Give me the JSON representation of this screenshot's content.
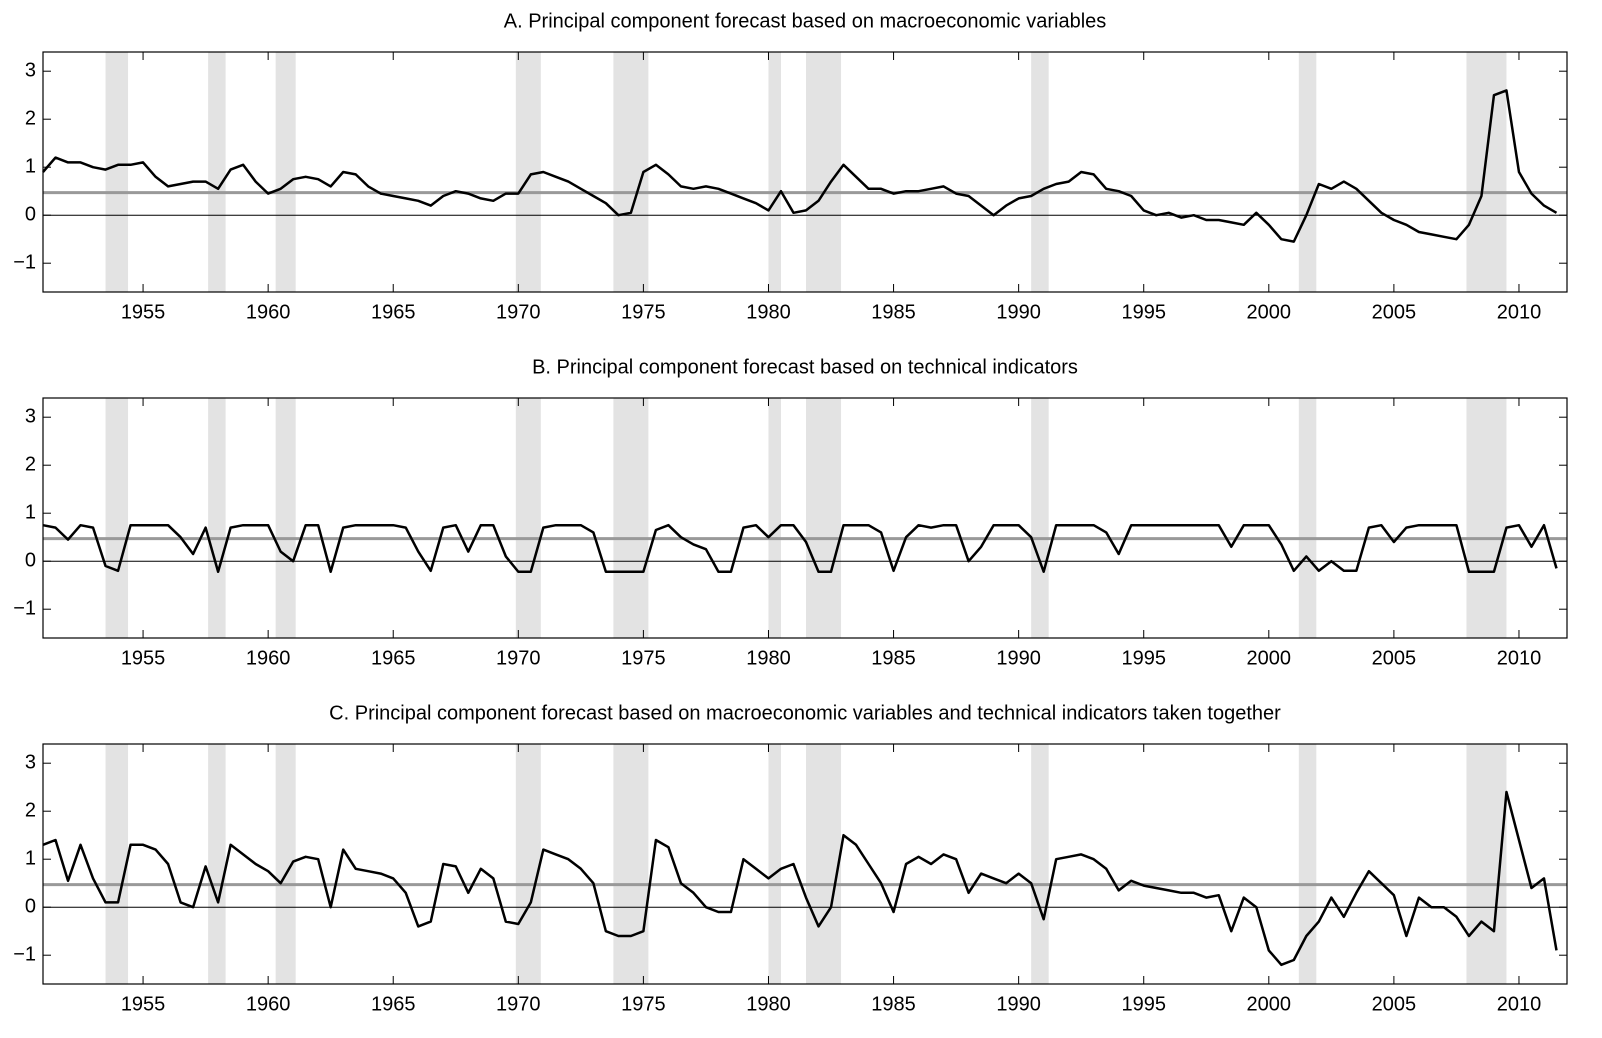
{
  "chart_data": [
    {
      "type": "line",
      "title": "A. Principal component forecast based on macroeconomic variables",
      "x": [
        1951,
        1951.5,
        1952,
        1952.5,
        1953,
        1953.5,
        1954,
        1954.5,
        1955,
        1955.5,
        1956,
        1956.5,
        1957,
        1957.5,
        1958,
        1958.5,
        1959,
        1959.5,
        1960,
        1960.5,
        1961,
        1961.5,
        1962,
        1962.5,
        1963,
        1963.5,
        1964,
        1964.5,
        1965,
        1965.5,
        1966,
        1966.5,
        1967,
        1967.5,
        1968,
        1968.5,
        1969,
        1969.5,
        1970,
        1970.5,
        1971,
        1971.5,
        1972,
        1972.5,
        1973,
        1973.5,
        1974,
        1974.5,
        1975,
        1975.5,
        1976,
        1976.5,
        1977,
        1977.5,
        1978,
        1978.5,
        1979,
        1979.5,
        1980,
        1980.5,
        1981,
        1981.5,
        1982,
        1982.5,
        1983,
        1983.5,
        1984,
        1984.5,
        1985,
        1985.5,
        1986,
        1986.5,
        1987,
        1987.5,
        1988,
        1988.5,
        1989,
        1989.5,
        1990,
        1990.5,
        1991,
        1991.5,
        1992,
        1992.5,
        1993,
        1993.5,
        1994,
        1994.5,
        1995,
        1995.5,
        1996,
        1996.5,
        1997,
        1997.5,
        1998,
        1998.5,
        1999,
        1999.5,
        2000,
        2000.5,
        2001,
        2001.5,
        2002,
        2002.5,
        2003,
        2003.5,
        2004,
        2004.5,
        2005,
        2005.5,
        2006,
        2006.5,
        2007,
        2007.5,
        2008,
        2008.5,
        2009,
        2009.5,
        2010,
        2010.5,
        2011,
        2011.5
      ],
      "series": [
        {
          "color": "#000000",
          "values": [
            0.9,
            1.2,
            1.1,
            1.1,
            1.0,
            0.95,
            1.05,
            1.05,
            1.1,
            0.8,
            0.6,
            0.65,
            0.7,
            0.7,
            0.55,
            0.95,
            1.05,
            0.7,
            0.45,
            0.55,
            0.75,
            0.8,
            0.75,
            0.6,
            0.9,
            0.85,
            0.6,
            0.45,
            0.4,
            0.35,
            0.3,
            0.2,
            0.4,
            0.5,
            0.45,
            0.35,
            0.3,
            0.45,
            0.45,
            0.85,
            0.9,
            0.8,
            0.7,
            0.55,
            0.4,
            0.25,
            0.0,
            0.05,
            0.9,
            1.05,
            0.85,
            0.6,
            0.55,
            0.6,
            0.55,
            0.45,
            0.35,
            0.25,
            0.1,
            0.5,
            0.05,
            0.1,
            0.3,
            0.7,
            1.05,
            0.8,
            0.55,
            0.55,
            0.45,
            0.5,
            0.5,
            0.55,
            0.6,
            0.45,
            0.4,
            0.2,
            0.0,
            0.2,
            0.35,
            0.4,
            0.55,
            0.65,
            0.7,
            0.9,
            0.85,
            0.55,
            0.5,
            0.4,
            0.1,
            0.0,
            0.05,
            -0.05,
            0.0,
            -0.1,
            -0.1,
            -0.15,
            -0.2,
            0.05,
            -0.2,
            -0.5,
            -0.55,
            0.0,
            0.65,
            0.55,
            0.7,
            0.55,
            0.3,
            0.05,
            -0.1,
            -0.2,
            -0.35,
            -0.4,
            -0.45,
            -0.5,
            -0.2,
            0.4,
            2.5,
            2.6,
            0.9,
            0.45,
            0.2,
            0.05
          ]
        }
      ],
      "reference_line": 0.47,
      "reference_color": "#999999",
      "shading": [
        [
          1953.5,
          1954.4
        ],
        [
          1957.6,
          1958.3
        ],
        [
          1960.3,
          1961.1
        ],
        [
          1969.9,
          1970.9
        ],
        [
          1973.8,
          1975.2
        ],
        [
          1980.0,
          1980.5
        ],
        [
          1981.5,
          1982.9
        ],
        [
          1990.5,
          1991.2
        ],
        [
          2001.2,
          2001.9
        ],
        [
          2007.9,
          2009.5
        ]
      ],
      "shading_color": "#e3e3e3",
      "xlim": [
        1951,
        2011.92
      ],
      "xticks": [
        1955,
        1960,
        1965,
        1970,
        1975,
        1980,
        1985,
        1990,
        1995,
        2000,
        2005,
        2010
      ],
      "ylim": [
        -1.6,
        3.4
      ],
      "yticks": [
        {
          "value": -1,
          "label": "−1"
        },
        0,
        1,
        2,
        3
      ]
    },
    {
      "type": "line",
      "title": "B. Principal component forecast based on technical indicators",
      "x": [
        1951,
        1951.5,
        1952,
        1952.5,
        1953,
        1953.5,
        1954,
        1954.5,
        1955,
        1955.5,
        1956,
        1956.5,
        1957,
        1957.5,
        1958,
        1958.5,
        1959,
        1959.5,
        1960,
        1960.5,
        1961,
        1961.5,
        1962,
        1962.5,
        1963,
        1963.5,
        1964,
        1964.5,
        1965,
        1965.5,
        1966,
        1966.5,
        1967,
        1967.5,
        1968,
        1968.5,
        1969,
        1969.5,
        1970,
        1970.5,
        1971,
        1971.5,
        1972,
        1972.5,
        1973,
        1973.5,
        1974,
        1974.5,
        1975,
        1975.5,
        1976,
        1976.5,
        1977,
        1977.5,
        1978,
        1978.5,
        1979,
        1979.5,
        1980,
        1980.5,
        1981,
        1981.5,
        1982,
        1982.5,
        1983,
        1983.5,
        1984,
        1984.5,
        1985,
        1985.5,
        1986,
        1986.5,
        1987,
        1987.5,
        1988,
        1988.5,
        1989,
        1989.5,
        1990,
        1990.5,
        1991,
        1991.5,
        1992,
        1992.5,
        1993,
        1993.5,
        1994,
        1994.5,
        1995,
        1995.5,
        1996,
        1996.5,
        1997,
        1997.5,
        1998,
        1998.5,
        1999,
        1999.5,
        2000,
        2000.5,
        2001,
        2001.5,
        2002,
        2002.5,
        2003,
        2003.5,
        2004,
        2004.5,
        2005,
        2005.5,
        2006,
        2006.5,
        2007,
        2007.5,
        2008,
        2008.5,
        2009,
        2009.5,
        2010,
        2010.5,
        2011,
        2011.5
      ],
      "series": [
        {
          "color": "#000000",
          "values": [
            0.75,
            0.7,
            0.45,
            0.75,
            0.7,
            -0.1,
            -0.2,
            0.75,
            0.75,
            0.75,
            0.75,
            0.5,
            0.15,
            0.7,
            -0.22,
            0.7,
            0.75,
            0.75,
            0.75,
            0.2,
            0.0,
            0.75,
            0.75,
            -0.22,
            0.7,
            0.75,
            0.75,
            0.75,
            0.75,
            0.7,
            0.2,
            -0.2,
            0.7,
            0.75,
            0.2,
            0.75,
            0.75,
            0.1,
            -0.22,
            -0.22,
            0.7,
            0.75,
            0.75,
            0.75,
            0.6,
            -0.22,
            -0.22,
            -0.22,
            -0.22,
            0.65,
            0.75,
            0.5,
            0.35,
            0.25,
            -0.22,
            -0.22,
            0.7,
            0.75,
            0.5,
            0.75,
            0.75,
            0.4,
            -0.22,
            -0.22,
            0.75,
            0.75,
            0.75,
            0.6,
            -0.2,
            0.5,
            0.75,
            0.7,
            0.75,
            0.75,
            0.0,
            0.3,
            0.75,
            0.75,
            0.75,
            0.5,
            -0.22,
            0.75,
            0.75,
            0.75,
            0.75,
            0.6,
            0.15,
            0.75,
            0.75,
            0.75,
            0.75,
            0.75,
            0.75,
            0.75,
            0.75,
            0.3,
            0.75,
            0.75,
            0.75,
            0.35,
            -0.2,
            0.1,
            -0.2,
            0.0,
            -0.2,
            -0.2,
            0.7,
            0.75,
            0.4,
            0.7,
            0.75,
            0.75,
            0.75,
            0.75,
            -0.22,
            -0.22,
            -0.22,
            0.7,
            0.75,
            0.3,
            0.75,
            -0.15
          ]
        }
      ],
      "reference_line": 0.47,
      "reference_color": "#999999",
      "shading": [
        [
          1953.5,
          1954.4
        ],
        [
          1957.6,
          1958.3
        ],
        [
          1960.3,
          1961.1
        ],
        [
          1969.9,
          1970.9
        ],
        [
          1973.8,
          1975.2
        ],
        [
          1980.0,
          1980.5
        ],
        [
          1981.5,
          1982.9
        ],
        [
          1990.5,
          1991.2
        ],
        [
          2001.2,
          2001.9
        ],
        [
          2007.9,
          2009.5
        ]
      ],
      "shading_color": "#e3e3e3",
      "xlim": [
        1951,
        2011.92
      ],
      "xticks": [
        1955,
        1960,
        1965,
        1970,
        1975,
        1980,
        1985,
        1990,
        1995,
        2000,
        2005,
        2010
      ],
      "ylim": [
        -1.6,
        3.4
      ],
      "yticks": [
        {
          "value": -1,
          "label": "−1"
        },
        0,
        1,
        2,
        3
      ]
    },
    {
      "type": "line",
      "title": "C. Principal component forecast based on macroeconomic variables and technical indicators taken together",
      "x": [
        1951,
        1951.5,
        1952,
        1952.5,
        1953,
        1953.5,
        1954,
        1954.5,
        1955,
        1955.5,
        1956,
        1956.5,
        1957,
        1957.5,
        1958,
        1958.5,
        1959,
        1959.5,
        1960,
        1960.5,
        1961,
        1961.5,
        1962,
        1962.5,
        1963,
        1963.5,
        1964,
        1964.5,
        1965,
        1965.5,
        1966,
        1966.5,
        1967,
        1967.5,
        1968,
        1968.5,
        1969,
        1969.5,
        1970,
        1970.5,
        1971,
        1971.5,
        1972,
        1972.5,
        1973,
        1973.5,
        1974,
        1974.5,
        1975,
        1975.5,
        1976,
        1976.5,
        1977,
        1977.5,
        1978,
        1978.5,
        1979,
        1979.5,
        1980,
        1980.5,
        1981,
        1981.5,
        1982,
        1982.5,
        1983,
        1983.5,
        1984,
        1984.5,
        1985,
        1985.5,
        1986,
        1986.5,
        1987,
        1987.5,
        1988,
        1988.5,
        1989,
        1989.5,
        1990,
        1990.5,
        1991,
        1991.5,
        1992,
        1992.5,
        1993,
        1993.5,
        1994,
        1994.5,
        1995,
        1995.5,
        1996,
        1996.5,
        1997,
        1997.5,
        1998,
        1998.5,
        1999,
        1999.5,
        2000,
        2000.5,
        2001,
        2001.5,
        2002,
        2002.5,
        2003,
        2003.5,
        2004,
        2004.5,
        2005,
        2005.5,
        2006,
        2006.5,
        2007,
        2007.5,
        2008,
        2008.5,
        2009,
        2009.5,
        2010,
        2010.5,
        2011,
        2011.5
      ],
      "series": [
        {
          "color": "#000000",
          "values": [
            1.3,
            1.4,
            0.55,
            1.3,
            0.6,
            0.1,
            0.1,
            1.3,
            1.3,
            1.2,
            0.9,
            0.1,
            0.0,
            0.85,
            0.1,
            1.3,
            1.1,
            0.9,
            0.75,
            0.5,
            0.95,
            1.05,
            1.0,
            0.0,
            1.2,
            0.8,
            0.75,
            0.7,
            0.6,
            0.3,
            -0.4,
            -0.3,
            0.9,
            0.85,
            0.3,
            0.8,
            0.6,
            -0.3,
            -0.35,
            0.1,
            1.2,
            1.1,
            1.0,
            0.8,
            0.5,
            -0.5,
            -0.6,
            -0.6,
            -0.5,
            1.4,
            1.25,
            0.5,
            0.3,
            0.0,
            -0.1,
            -0.1,
            1.0,
            0.8,
            0.6,
            0.8,
            0.9,
            0.2,
            -0.4,
            0.0,
            1.5,
            1.3,
            0.9,
            0.5,
            -0.1,
            0.9,
            1.05,
            0.9,
            1.1,
            1.0,
            0.3,
            0.7,
            0.6,
            0.5,
            0.7,
            0.5,
            -0.25,
            1.0,
            1.05,
            1.1,
            1.0,
            0.8,
            0.35,
            0.55,
            0.45,
            0.4,
            0.35,
            0.3,
            0.3,
            0.2,
            0.25,
            -0.5,
            0.2,
            0.0,
            -0.9,
            -1.2,
            -1.1,
            -0.6,
            -0.3,
            0.2,
            -0.2,
            0.3,
            0.75,
            0.5,
            0.25,
            -0.6,
            0.2,
            0.0,
            0.0,
            -0.2,
            -0.6,
            -0.3,
            -0.5,
            2.4,
            1.4,
            0.4,
            0.6,
            -0.9
          ]
        }
      ],
      "reference_line": 0.47,
      "reference_color": "#999999",
      "shading": [
        [
          1953.5,
          1954.4
        ],
        [
          1957.6,
          1958.3
        ],
        [
          1960.3,
          1961.1
        ],
        [
          1969.9,
          1970.9
        ],
        [
          1973.8,
          1975.2
        ],
        [
          1980.0,
          1980.5
        ],
        [
          1981.5,
          1982.9
        ],
        [
          1990.5,
          1991.2
        ],
        [
          2001.2,
          2001.9
        ],
        [
          2007.9,
          2009.5
        ]
      ],
      "shading_color": "#e3e3e3",
      "xlim": [
        1951,
        2011.92
      ],
      "xticks": [
        1955,
        1960,
        1965,
        1970,
        1975,
        1980,
        1985,
        1990,
        1995,
        2000,
        2005,
        2010
      ],
      "ylim": [
        -1.6,
        3.4
      ],
      "yticks": [
        {
          "value": -1,
          "label": "−1"
        },
        0,
        1,
        2,
        3
      ]
    }
  ]
}
